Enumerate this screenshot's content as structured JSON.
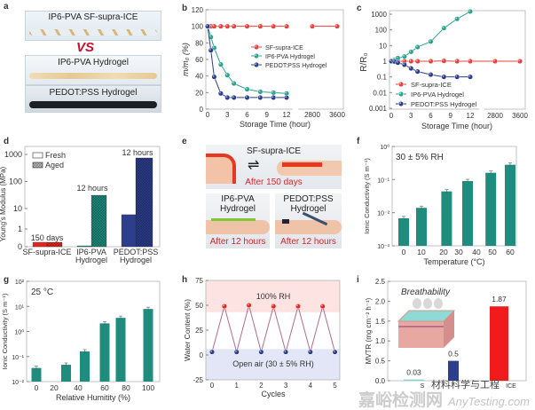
{
  "panel_labels": [
    "a",
    "b",
    "c",
    "d",
    "e",
    "f",
    "g",
    "h",
    "i"
  ],
  "panel_a": {
    "items": [
      "IP6-PVA SF-supra-ICE",
      "IP6-PVA Hydrogel",
      "PEDOT:PSS Hydrogel"
    ],
    "vs": "VS"
  },
  "panel_e": {
    "top_title": "SF-supra-ICE",
    "top_caption": "After 150 days",
    "left_title": "IP6-PVA\nHydrogel",
    "left_caption": "After 12 hours",
    "right_title": "PEDOT:PSS\nHydrogel",
    "right_caption": "After 12 hours",
    "arrow": "⇌"
  },
  "watermark": {
    "cn": "材料科学与工程",
    "site_cn": "嘉峪检测网",
    "site_en": "AnyTesting.com"
  },
  "colors": {
    "sf": "#e8403a",
    "ip6": "#2aa38f",
    "pedot": "#2c3e8c",
    "bar_teal": "#1f8c7e"
  },
  "chart_data": [
    {
      "panel": "b",
      "type": "line",
      "xlabel": "Storage Time (hour)",
      "ylabel": "m/m₀ (%)",
      "xticks": [
        "0",
        "3",
        "6",
        "9",
        "12",
        "2800",
        "3600"
      ],
      "yticks": [
        "0",
        "20",
        "40",
        "60",
        "80",
        "100",
        "120"
      ],
      "ylim": [
        0,
        120
      ],
      "x_axis_break": [
        12,
        2800
      ],
      "legend": "center-right",
      "series": [
        {
          "name": "SF-supra-ICE",
          "color": "#e8403a",
          "x": [
            0,
            0.5,
            1,
            2,
            3,
            4,
            6,
            8,
            10,
            12,
            2800,
            3600
          ],
          "y": [
            100,
            100,
            100,
            100,
            100,
            100,
            100,
            100,
            100,
            100,
            100,
            100
          ]
        },
        {
          "name": "IP6-PVA Hydrogel",
          "color": "#2aa38f",
          "x": [
            0,
            0.5,
            1,
            2,
            3,
            4,
            6,
            8,
            10,
            12
          ],
          "y": [
            100,
            87,
            74,
            54,
            41,
            31,
            24,
            21,
            20,
            19
          ]
        },
        {
          "name": "PEDOT:PSS Hydrogel",
          "color": "#2c3e8c",
          "x": [
            0,
            0.5,
            1,
            2,
            3,
            4,
            6,
            8,
            10,
            12
          ],
          "y": [
            100,
            71,
            39,
            19,
            14,
            14,
            14,
            14,
            14,
            14
          ]
        }
      ]
    },
    {
      "panel": "c",
      "type": "line",
      "yscale": "log",
      "xlabel": "Storage Time (hour)",
      "ylabel": "R/R₀",
      "xticks": [
        "0",
        "3",
        "6",
        "9",
        "12",
        "2800",
        "3600"
      ],
      "yticks": [
        "0.001",
        "0.01",
        "0.1",
        "1",
        "10",
        "100",
        "1000"
      ],
      "ylim": [
        0.001,
        1000
      ],
      "x_axis_break": [
        12,
        2800
      ],
      "legend": "bottom-left",
      "series": [
        {
          "name": "SF-supra-ICE",
          "color": "#e8403a",
          "x": [
            0,
            0.5,
            1,
            2,
            3,
            4,
            6,
            8,
            10,
            12,
            2800,
            3600
          ],
          "y": [
            1,
            1,
            1,
            1,
            1,
            1,
            1,
            1.05,
            1,
            1,
            1,
            1
          ]
        },
        {
          "name": "IP6-PVA Hydrogel",
          "color": "#2aa38f",
          "x": [
            0,
            0.5,
            1,
            2,
            3,
            4,
            6,
            8,
            10,
            12
          ],
          "y": [
            1,
            1.2,
            1.6,
            2,
            4,
            8,
            18,
            130,
            500,
            1500
          ]
        },
        {
          "name": "PEDOT:PSS Hydrogel",
          "color": "#2c3e8c",
          "x": [
            0,
            0.5,
            1,
            2,
            3,
            4,
            6,
            8,
            10,
            12
          ],
          "y": [
            1,
            0.95,
            0.8,
            0.6,
            0.35,
            0.22,
            0.14,
            0.1,
            0.1,
            0.1
          ]
        }
      ]
    },
    {
      "panel": "d",
      "type": "bar",
      "yscale": "broken (linear 0–1, log above)",
      "ylabel": "Young's Modulus (MPa)",
      "categories": [
        "SF-supra-ICE",
        "IP6-PVA\nHydrogel",
        "PEDOT:PSS\nHydrogel"
      ],
      "yticks": [
        "0",
        "1",
        "10",
        "100",
        "1000"
      ],
      "legend_entries": [
        "Fresh",
        "Aged"
      ],
      "legend": "top-left",
      "bar_colors": [
        "#e3261f",
        "#1f8c7e",
        "#2c3e8c"
      ],
      "series": [
        {
          "name": "Fresh",
          "values": [
            0.25,
            0.05,
            5
          ]
        },
        {
          "name": "Aged",
          "values": [
            0.25,
            31,
            740
          ]
        }
      ],
      "annotations": [
        "150 days",
        "12 hours",
        "12 hours"
      ]
    },
    {
      "panel": "f",
      "type": "bar",
      "yscale": "log",
      "annotation": "30 ± 5% RH",
      "xlabel": "Temperature (°C)",
      "ylabel": "Ionic Conductivity (S m⁻¹)",
      "xticks": [
        "0",
        "10",
        "20",
        "30",
        "40",
        "50",
        "60"
      ],
      "yticks": [
        "10⁻³",
        "10⁻²",
        "10⁻¹",
        "10⁰"
      ],
      "ylim": [
        0.001,
        1
      ],
      "x": [
        0,
        10,
        22,
        35,
        49,
        60
      ],
      "values": [
        0.0068,
        0.014,
        0.044,
        0.09,
        0.16,
        0.28
      ]
    },
    {
      "panel": "g",
      "type": "bar",
      "yscale": "log",
      "annotation": "25 °C",
      "xlabel": "Relative Humitity (%)",
      "ylabel": "Ionic Conductivity (S m⁻¹)",
      "xticks": [
        "0",
        "20",
        "40",
        "60",
        "80",
        "100"
      ],
      "yticks": [
        "10⁻²",
        "10⁻¹",
        "10⁰",
        "10¹",
        "10²"
      ],
      "ylim": [
        0.01,
        100
      ],
      "x": [
        0,
        30,
        45,
        60,
        75,
        100
      ],
      "values": [
        0.035,
        0.047,
        0.16,
        2.1,
        3.5,
        7.9
      ]
    },
    {
      "panel": "h",
      "type": "line",
      "xlabel": "Cycles",
      "ylabel": "Water Content (%)",
      "xticks": [
        "0",
        "1",
        "2",
        "3",
        "4",
        "5"
      ],
      "yticks": [
        "-25",
        "0",
        "25",
        "50",
        "75"
      ],
      "ylim": [
        -25,
        75
      ],
      "bands": [
        {
          "label": "100% RH",
          "from": 43,
          "to": 75,
          "color": "#fde3e1"
        },
        {
          "label": "Open air (30 ± 5% RH)",
          "from": -25,
          "to": 6,
          "color": "#e3e6f6"
        }
      ],
      "x": [
        0,
        0.5,
        1,
        1.5,
        2,
        2.5,
        3,
        3.5,
        4,
        4.5,
        5
      ],
      "y": [
        3,
        49,
        3,
        50,
        3,
        49,
        3,
        49,
        3,
        49,
        3
      ]
    },
    {
      "panel": "i",
      "type": "bar",
      "title": "Breathability",
      "ylabel": "MVTR (mg cm⁻² h⁻¹)",
      "yticks": [
        "0.0",
        "0.5",
        "1.0",
        "1.5",
        "2.0",
        "2.5"
      ],
      "ylim": [
        0,
        2.5
      ],
      "xtick_visible": [
        "S",
        "ICE"
      ],
      "values": [
        0.03,
        0.5,
        1.87
      ],
      "value_labels": [
        "0.03",
        "0.5",
        "1.87"
      ],
      "bar_colors": [
        "#7fd6cf",
        "#2c3e8c",
        "#f21b1b"
      ]
    }
  ]
}
